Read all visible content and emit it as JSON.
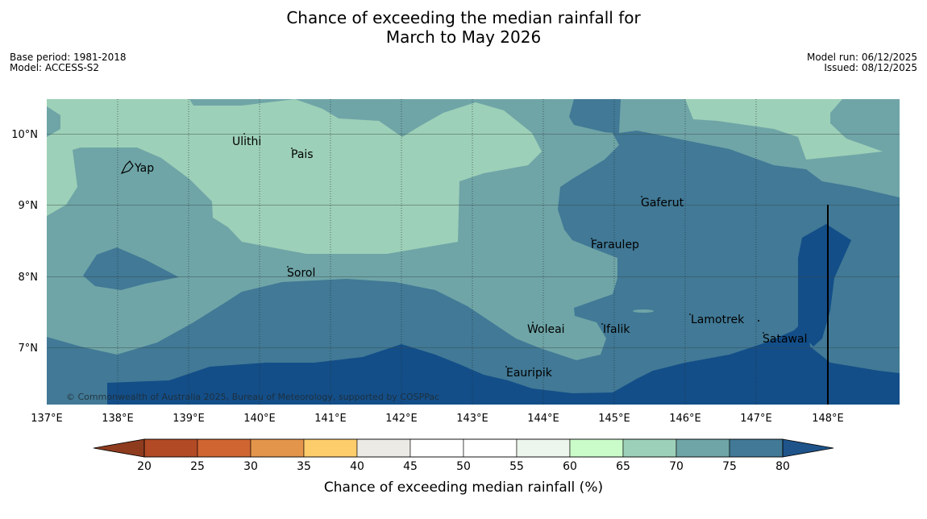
{
  "title": {
    "line1": "Chance of exceeding the median rainfall for",
    "line2": "March to May 2026"
  },
  "meta": {
    "base_period": "Base period: 1981-2018",
    "model": "Model: ACCESS-S2",
    "model_run": "Model run: 06/12/2025",
    "issued": "Issued: 08/12/2025"
  },
  "map": {
    "copyright": "© Commonwealth of Australia 2025, Bureau of Meteorology, supported by COSPPac",
    "lon_labels": [
      "137°E",
      "138°E",
      "139°E",
      "140°E",
      "141°E",
      "142°E",
      "143°E",
      "144°E",
      "145°E",
      "146°E",
      "147°E",
      "148°E"
    ],
    "lat_labels": [
      "10°N",
      "9°N",
      "8°N",
      "7°N"
    ],
    "places": [
      "Ulithi",
      "Pais",
      "Yap",
      "Gaferut",
      "Faraulep",
      "Sorol",
      "Lamotrek",
      "Woleai",
      "Ifalik",
      "Satawal",
      "Eauripik"
    ]
  },
  "colors": {
    "c65_70": "#9dd0b8",
    "c70_75": "#6fa5a7",
    "c75_80": "#417996",
    "c80plus": "#134e88"
  },
  "colorbar": {
    "title": "Chance of exceeding median rainfall (%)",
    "ticks": [
      "20",
      "25",
      "30",
      "35",
      "40",
      "45",
      "50",
      "55",
      "60",
      "65",
      "70",
      "75",
      "80"
    ],
    "low_extend_color": "#8e3b1e",
    "high_extend_color": "#1f548a",
    "bin_colors": [
      "#b24a26",
      "#d06532",
      "#e3954b",
      "#fdcd6b",
      "#eceae4",
      "#ffffff",
      "#ffffff",
      "#edf6ec",
      "#cafcca",
      "#9dd0b8",
      "#6fa5a7",
      "#417996"
    ]
  }
}
